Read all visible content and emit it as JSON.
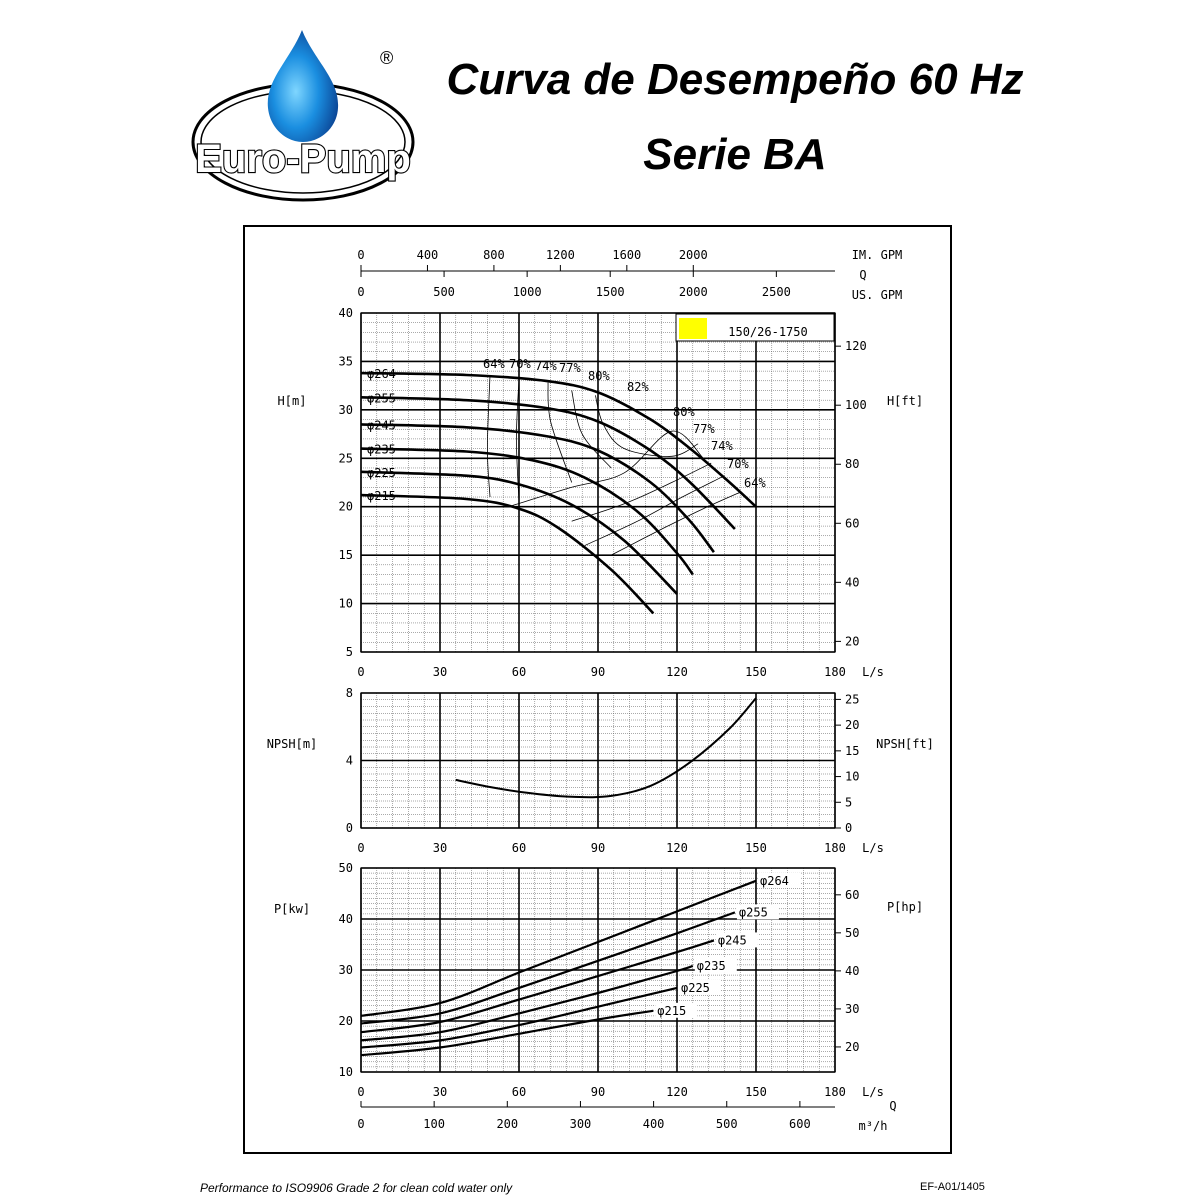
{
  "header": {
    "logo_text": "Euro-Pump",
    "registered_mark": "®",
    "title_line1": "Curva de Desempeño 60 Hz",
    "title_line2": "Serie BA"
  },
  "footer": {
    "note": "Performance to ISO9906 Grade 2 for clean cold water only",
    "code": "EF-A01/1405"
  },
  "chart_data": [
    {
      "type": "line",
      "name": "head",
      "model_label": "150/26-1750",
      "model_highlight": "#ffff00",
      "xlabel": "L/s",
      "ylabel_left": "H[m]",
      "ylabel_right": "H[ft]",
      "xlim": [
        0,
        180
      ],
      "ylim": [
        5,
        40
      ],
      "x_ticks": [
        0,
        30,
        60,
        90,
        120,
        150,
        180
      ],
      "y_ticks": [
        5,
        10,
        15,
        20,
        25,
        30,
        35,
        40
      ],
      "right_ticks": [
        20,
        40,
        60,
        80,
        100,
        120
      ],
      "top_axes": {
        "im_gpm_label": "IM. GPM",
        "im_gpm_ticks": [
          0,
          400,
          800,
          1200,
          1600,
          2000
        ],
        "q_label": "Q",
        "us_gpm_label": "US. GPM",
        "us_gpm_ticks": [
          0,
          500,
          1000,
          1500,
          2000,
          2500
        ]
      },
      "series": [
        {
          "name": "φ264",
          "x": [
            0,
            40,
            70,
            90,
            110,
            125,
            140,
            150
          ],
          "y": [
            33.8,
            33.6,
            33.0,
            31.8,
            29.0,
            26.0,
            22.5,
            20.0
          ]
        },
        {
          "name": "φ255",
          "x": [
            0,
            40,
            70,
            90,
            110,
            125,
            142
          ],
          "y": [
            31.3,
            31.0,
            30.2,
            28.8,
            25.8,
            22.5,
            17.7
          ]
        },
        {
          "name": "φ245",
          "x": [
            0,
            40,
            70,
            90,
            110,
            125,
            134
          ],
          "y": [
            28.5,
            28.2,
            27.3,
            25.8,
            22.5,
            18.5,
            15.3
          ]
        },
        {
          "name": "φ235",
          "x": [
            0,
            40,
            65,
            85,
            105,
            120,
            126
          ],
          "y": [
            26.0,
            25.7,
            24.8,
            23.0,
            19.5,
            15.2,
            13.0
          ]
        },
        {
          "name": "φ225",
          "x": [
            0,
            40,
            60,
            80,
            100,
            120
          ],
          "y": [
            23.6,
            23.2,
            22.3,
            20.2,
            16.5,
            11.0
          ]
        },
        {
          "name": "φ215",
          "x": [
            0,
            40,
            60,
            75,
            95,
            111
          ],
          "y": [
            21.2,
            20.8,
            19.8,
            17.8,
            13.5,
            9.0
          ]
        }
      ],
      "efficiency_labels": [
        "64%",
        "70%",
        "74%",
        "77%",
        "80%",
        "82%",
        "80%",
        "77%",
        "74%",
        "70%",
        "64%"
      ]
    },
    {
      "type": "line",
      "name": "npsh",
      "xlabel": "L/s",
      "ylabel_left": "NPSH[m]",
      "ylabel_right": "NPSH[ft]",
      "xlim": [
        0,
        180
      ],
      "ylim": [
        0,
        8
      ],
      "x_ticks": [
        0,
        30,
        60,
        90,
        120,
        150,
        180
      ],
      "y_ticks": [
        0,
        4,
        8
      ],
      "right_ticks": [
        0,
        5,
        10,
        15,
        20,
        25
      ],
      "series": [
        {
          "name": "NPSH",
          "x": [
            36,
            50,
            65,
            80,
            95,
            110,
            125,
            140,
            150
          ],
          "y": [
            2.85,
            2.4,
            2.05,
            1.85,
            1.9,
            2.5,
            3.9,
            5.9,
            7.7
          ]
        }
      ]
    },
    {
      "type": "line",
      "name": "power",
      "xlabel": "L/s",
      "ylabel_left": "P[kw]",
      "ylabel_right": "P[hp]",
      "xlim": [
        0,
        180
      ],
      "ylim": [
        10,
        50
      ],
      "x_ticks": [
        0,
        30,
        60,
        90,
        120,
        150,
        180
      ],
      "y_ticks": [
        10,
        20,
        30,
        40,
        50
      ],
      "right_ticks": [
        20,
        30,
        40,
        50,
        60
      ],
      "bottom_axis": {
        "label": "m³/h",
        "q_label": "Q",
        "ticks": [
          0,
          100,
          200,
          300,
          400,
          500,
          600
        ]
      },
      "series": [
        {
          "name": "φ264",
          "x": [
            0,
            30,
            60,
            90,
            120,
            150
          ],
          "y": [
            21.0,
            23.5,
            29.5,
            35.5,
            41.5,
            47.5
          ]
        },
        {
          "name": "φ255",
          "x": [
            0,
            30,
            60,
            90,
            120,
            142
          ],
          "y": [
            19.5,
            21.5,
            26.5,
            31.8,
            37.2,
            41.3
          ]
        },
        {
          "name": "φ245",
          "x": [
            0,
            30,
            60,
            90,
            120,
            134
          ],
          "y": [
            17.8,
            19.8,
            24.2,
            28.8,
            33.5,
            35.8
          ]
        },
        {
          "name": "φ235",
          "x": [
            0,
            30,
            60,
            90,
            120,
            126
          ],
          "y": [
            16.2,
            17.8,
            21.5,
            25.5,
            29.8,
            30.8
          ]
        },
        {
          "name": "φ225",
          "x": [
            0,
            30,
            60,
            90,
            120
          ],
          "y": [
            14.8,
            16.2,
            19.2,
            22.8,
            26.5
          ]
        },
        {
          "name": "φ215",
          "x": [
            0,
            30,
            60,
            90,
            111
          ],
          "y": [
            13.3,
            14.8,
            17.5,
            20.3,
            22.0
          ]
        }
      ]
    }
  ]
}
